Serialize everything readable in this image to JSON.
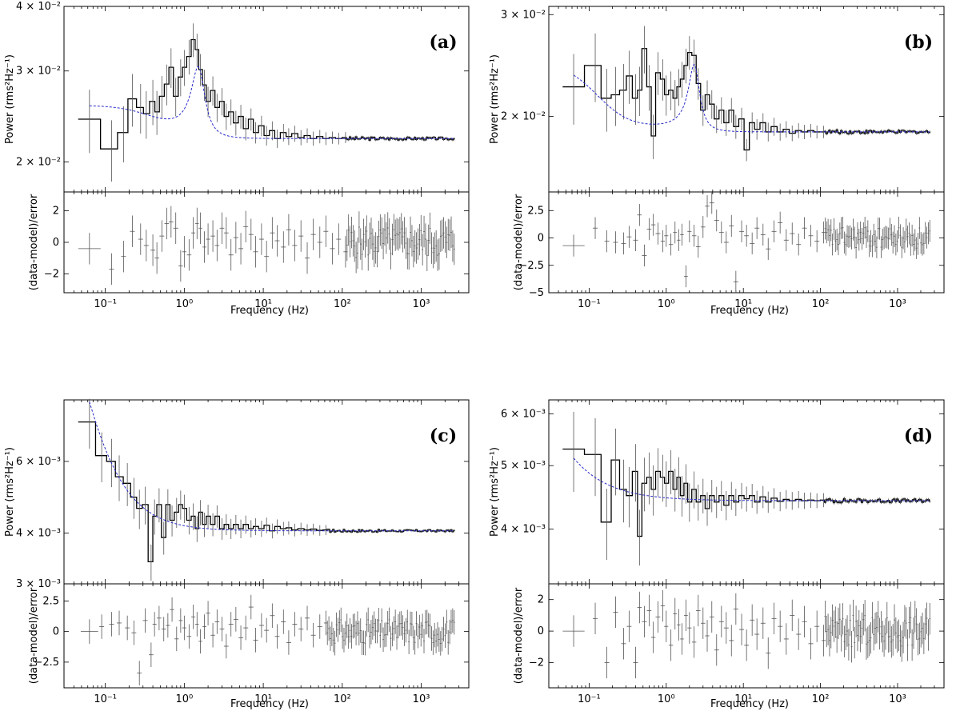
{
  "figure": {
    "xlabel": "Frequency (Hz)",
    "ylabel_power": "Power (rms²Hz⁻¹)",
    "ylabel_resid": "(data-model)/error",
    "x_ticks": [
      "10⁻¹",
      "10⁰",
      "10¹",
      "10²",
      "10³"
    ],
    "x_tick_values": [
      0.1,
      1,
      10,
      100,
      1000
    ],
    "xlim": [
      0.03,
      4000
    ],
    "colors": {
      "data": "#000000",
      "model": "#2b2bcc",
      "errorbar": "#555555"
    }
  },
  "chart_data": [
    {
      "panel": "(a)",
      "type": "line",
      "title": "(a)",
      "power": {
        "ylim": [
          0.0175,
          0.04
        ],
        "y_ticks": [
          {
            "v": 0.02,
            "label": "2 × 10⁻²"
          },
          {
            "v": 0.03,
            "label": "3 × 10⁻²"
          },
          {
            "v": 0.04,
            "label": "4 × 10⁻²"
          }
        ],
        "model": {
          "type": "lorentzian",
          "base": 0.0222,
          "low_plateau": 0.0031,
          "low_break": 0.4,
          "peak_freq": 1.5,
          "peak_amp": 0.0082,
          "peak_width": 0.35
        },
        "data_x": [
          0.063,
          0.12,
          0.17,
          0.22,
          0.28,
          0.33,
          0.4,
          0.45,
          0.52,
          0.6,
          0.68,
          0.78,
          0.9,
          1.0,
          1.15,
          1.3,
          1.45,
          1.6,
          1.8,
          2.0,
          2.3,
          2.6,
          3.0,
          3.4,
          3.9,
          4.5,
          5.2,
          6.0,
          7.0,
          8.0,
          9.5,
          11,
          13,
          15,
          18,
          21,
          25,
          30,
          36,
          43,
          52,
          62,
          75,
          90,
          110
        ],
        "data_y": [
          0.0242,
          0.0212,
          0.0228,
          0.0265,
          0.0255,
          0.0248,
          0.0262,
          0.025,
          0.0268,
          0.0283,
          0.0305,
          0.0268,
          0.0292,
          0.0305,
          0.032,
          0.0345,
          0.033,
          0.0302,
          0.0282,
          0.0262,
          0.0275,
          0.0255,
          0.0262,
          0.0245,
          0.025,
          0.0238,
          0.0245,
          0.0232,
          0.0242,
          0.0228,
          0.0235,
          0.0225,
          0.023,
          0.0222,
          0.0228,
          0.0224,
          0.0227,
          0.0223,
          0.0225,
          0.0222,
          0.0224,
          0.0222,
          0.0223,
          0.0222,
          0.0223
        ]
      },
      "residual": {
        "ylim": [
          -3.2,
          3.2
        ],
        "y_ticks": [
          -2,
          0,
          2
        ],
        "data": [
          -0.4,
          -1.7,
          -0.9,
          0.7,
          0.2,
          -0.2,
          -0.5,
          -1.0,
          0.4,
          1.2,
          1.3,
          0.9,
          -1.5,
          -0.6,
          -0.8,
          0.6,
          1.2,
          0.9,
          -0.3,
          0.2,
          0.4,
          -0.2,
          0.9,
          0.6,
          -0.8,
          0.3,
          -0.4,
          1.0,
          0.5,
          -0.6,
          0.2,
          -0.9,
          0.6,
          0.1,
          -0.3,
          0.8,
          -0.2,
          0.4,
          -1.0,
          0.5,
          0.0,
          0.7,
          -0.4,
          0.2,
          -0.6
        ]
      }
    },
    {
      "panel": "(b)",
      "type": "line",
      "title": "(b)",
      "power": {
        "ylim": [
          0.0148,
          0.031
        ],
        "y_ticks": [
          {
            "v": 0.02,
            "label": "2 × 10⁻²"
          },
          {
            "v": 0.03,
            "label": "3 × 10⁻²"
          }
        ],
        "model": {
          "type": "lorentzian",
          "base": 0.0188,
          "low_plateau": 0.0058,
          "low_break": 0.12,
          "peak_freq": 2.3,
          "peak_amp": 0.0058,
          "peak_width": 0.45
        },
        "data_x": [
          0.063,
          0.12,
          0.17,
          0.22,
          0.28,
          0.33,
          0.4,
          0.45,
          0.52,
          0.6,
          0.68,
          0.78,
          0.9,
          1.0,
          1.15,
          1.3,
          1.45,
          1.6,
          1.8,
          2.0,
          2.3,
          2.6,
          3.0,
          3.4,
          3.9,
          4.5,
          5.2,
          6.0,
          7.0,
          8.0,
          9.5,
          11,
          13,
          15,
          18,
          21,
          25,
          30,
          36,
          43,
          52,
          62,
          75,
          90,
          110
        ],
        "data_y": [
          0.0225,
          0.0245,
          0.0215,
          0.0218,
          0.0222,
          0.0235,
          0.0215,
          0.0222,
          0.0262,
          0.0225,
          0.0185,
          0.0238,
          0.0232,
          0.0218,
          0.0222,
          0.0215,
          0.0225,
          0.0232,
          0.0245,
          0.0258,
          0.0255,
          0.0228,
          0.0205,
          0.0218,
          0.021,
          0.0198,
          0.0205,
          0.0195,
          0.0205,
          0.0192,
          0.0198,
          0.0175,
          0.0195,
          0.019,
          0.0195,
          0.0188,
          0.0192,
          0.0188,
          0.019,
          0.0187,
          0.0189,
          0.0188,
          0.0189,
          0.0188,
          0.0188
        ]
      },
      "residual": {
        "ylim": [
          -5.0,
          4.2
        ],
        "y_ticks": [
          -5.0,
          -2.5,
          0.0,
          2.5
        ],
        "data": [
          -0.7,
          0.9,
          -0.3,
          -0.4,
          -0.5,
          0.1,
          -0.2,
          2.1,
          -1.6,
          0.8,
          1.2,
          0.4,
          -0.3,
          0.2,
          -0.6,
          0.5,
          -0.2,
          0.3,
          -3.5,
          0.6,
          0.2,
          -0.8,
          1.0,
          2.9,
          3.2,
          1.6,
          0.5,
          -0.4,
          1.1,
          -4.0,
          0.6,
          0.2,
          -0.5,
          0.9,
          0.3,
          -1.0,
          0.6,
          1.4,
          -0.2,
          0.4,
          -0.6,
          0.9,
          0.2,
          -0.3,
          0.5
        ]
      }
    },
    {
      "panel": "(c)",
      "type": "line",
      "title": "(c)",
      "power": {
        "ylim": [
          0.003,
          0.0085
        ],
        "y_ticks": [
          {
            "v": 0.003,
            "label": "3 × 10⁻³"
          },
          {
            "v": 0.004,
            "label": "4 × 10⁻³"
          },
          {
            "v": 0.006,
            "label": "6 × 10⁻³"
          }
        ],
        "model": {
          "type": "powerlaw",
          "base": 0.00405,
          "amp": 0.00012,
          "index": 1.3,
          "peak_amp": 0.0,
          "peak_freq": 1.0,
          "peak_width": 0.5
        },
        "data_x": [
          0.063,
          0.09,
          0.12,
          0.15,
          0.19,
          0.23,
          0.27,
          0.32,
          0.38,
          0.42,
          0.48,
          0.55,
          0.62,
          0.7,
          0.8,
          0.9,
          1.0,
          1.15,
          1.3,
          1.45,
          1.6,
          1.8,
          2.0,
          2.3,
          2.6,
          3.0,
          3.4,
          3.9,
          4.5,
          5.2,
          6.0,
          7.0,
          8.0,
          9.5,
          11,
          13,
          15,
          18,
          21,
          25,
          30,
          36,
          43,
          52,
          62
        ],
        "data_y": [
          0.0075,
          0.0062,
          0.006,
          0.0055,
          0.0053,
          0.0049,
          0.0046,
          0.0047,
          0.0034,
          0.0044,
          0.0047,
          0.0039,
          0.0047,
          0.0043,
          0.0045,
          0.0047,
          0.0046,
          0.0043,
          0.0044,
          0.0041,
          0.0045,
          0.0042,
          0.0044,
          0.0042,
          0.0044,
          0.0041,
          0.0042,
          0.0041,
          0.0042,
          0.0041,
          0.0042,
          0.0041,
          0.00415,
          0.0041,
          0.00418,
          0.00405,
          0.00415,
          0.0041,
          0.00412,
          0.00407,
          0.0041,
          0.00407,
          0.00409,
          0.00406,
          0.00407
        ]
      },
      "residual": {
        "ylim": [
          -4.6,
          3.9
        ],
        "y_ticks": [
          -2.5,
          0.0,
          2.5
        ],
        "data": [
          0.0,
          0.4,
          0.6,
          0.7,
          0.3,
          -0.1,
          -3.4,
          0.9,
          -1.9,
          0.6,
          1.1,
          0.2,
          0.5,
          1.8,
          -0.6,
          0.9,
          0.3,
          -0.4,
          1.2,
          0.6,
          -0.8,
          0.4,
          1.5,
          -0.3,
          0.8,
          0.2,
          -1.2,
          0.6,
          1.0,
          -0.5,
          0.3,
          2.0,
          -0.7,
          0.5,
          0.1,
          1.3,
          -0.4,
          0.8,
          -0.9,
          0.6,
          0.2,
          1.1,
          -0.3,
          0.4,
          0.7
        ]
      }
    },
    {
      "panel": "(d)",
      "type": "line",
      "title": "(d)",
      "power": {
        "ylim": [
          0.0033,
          0.0063
        ],
        "y_ticks": [
          {
            "v": 0.004,
            "label": "4 × 10⁻³"
          },
          {
            "v": 0.005,
            "label": "5 × 10⁻³"
          },
          {
            "v": 0.006,
            "label": "6 × 10⁻³"
          }
        ],
        "model": {
          "type": "powerlaw",
          "base": 0.00442,
          "amp": 4.5e-05,
          "index": 1.0,
          "peak_amp": 0.0,
          "peak_freq": 1.0,
          "peak_width": 0.5
        },
        "data_x": [
          0.063,
          0.12,
          0.17,
          0.22,
          0.28,
          0.33,
          0.4,
          0.45,
          0.52,
          0.6,
          0.68,
          0.78,
          0.9,
          1.0,
          1.15,
          1.3,
          1.45,
          1.6,
          1.8,
          2.0,
          2.3,
          2.6,
          3.0,
          3.4,
          3.9,
          4.5,
          5.2,
          6.0,
          7.0,
          8.0,
          9.5,
          11,
          13,
          15,
          18,
          21,
          25,
          30,
          36,
          43,
          52,
          62,
          75,
          90,
          110
        ],
        "data_y": [
          0.0053,
          0.0052,
          0.0041,
          0.0051,
          0.0046,
          0.0045,
          0.0049,
          0.0039,
          0.0047,
          0.0048,
          0.0046,
          0.0049,
          0.0048,
          0.0047,
          0.0049,
          0.0046,
          0.0048,
          0.0045,
          0.0047,
          0.0044,
          0.0046,
          0.0044,
          0.0045,
          0.0043,
          0.0045,
          0.0044,
          0.0045,
          0.00435,
          0.0045,
          0.0044,
          0.0045,
          0.00445,
          0.0045,
          0.0044,
          0.00448,
          0.0044,
          0.00446,
          0.00441,
          0.00444,
          0.00442,
          0.00444,
          0.00442,
          0.00443,
          0.00442,
          0.00443
        ]
      },
      "residual": {
        "ylim": [
          -3.6,
          3.0
        ],
        "y_ticks": [
          -2,
          0,
          2
        ],
        "data": [
          0.0,
          0.8,
          -2.0,
          1.2,
          -0.8,
          0.3,
          -2.0,
          1.5,
          0.6,
          1.3,
          -0.4,
          0.9,
          1.6,
          0.3,
          -0.9,
          1.1,
          0.4,
          -0.5,
          1.0,
          0.2,
          -0.7,
          1.3,
          0.5,
          -0.3,
          0.9,
          -1.2,
          0.6,
          0.2,
          -0.6,
          1.4,
          0.1,
          -0.9,
          0.7,
          -0.2,
          0.5,
          -1.4,
          0.8,
          0.3,
          -0.5,
          1.0,
          -0.2,
          0.6,
          -0.8,
          0.3,
          -0.6
        ]
      }
    }
  ]
}
